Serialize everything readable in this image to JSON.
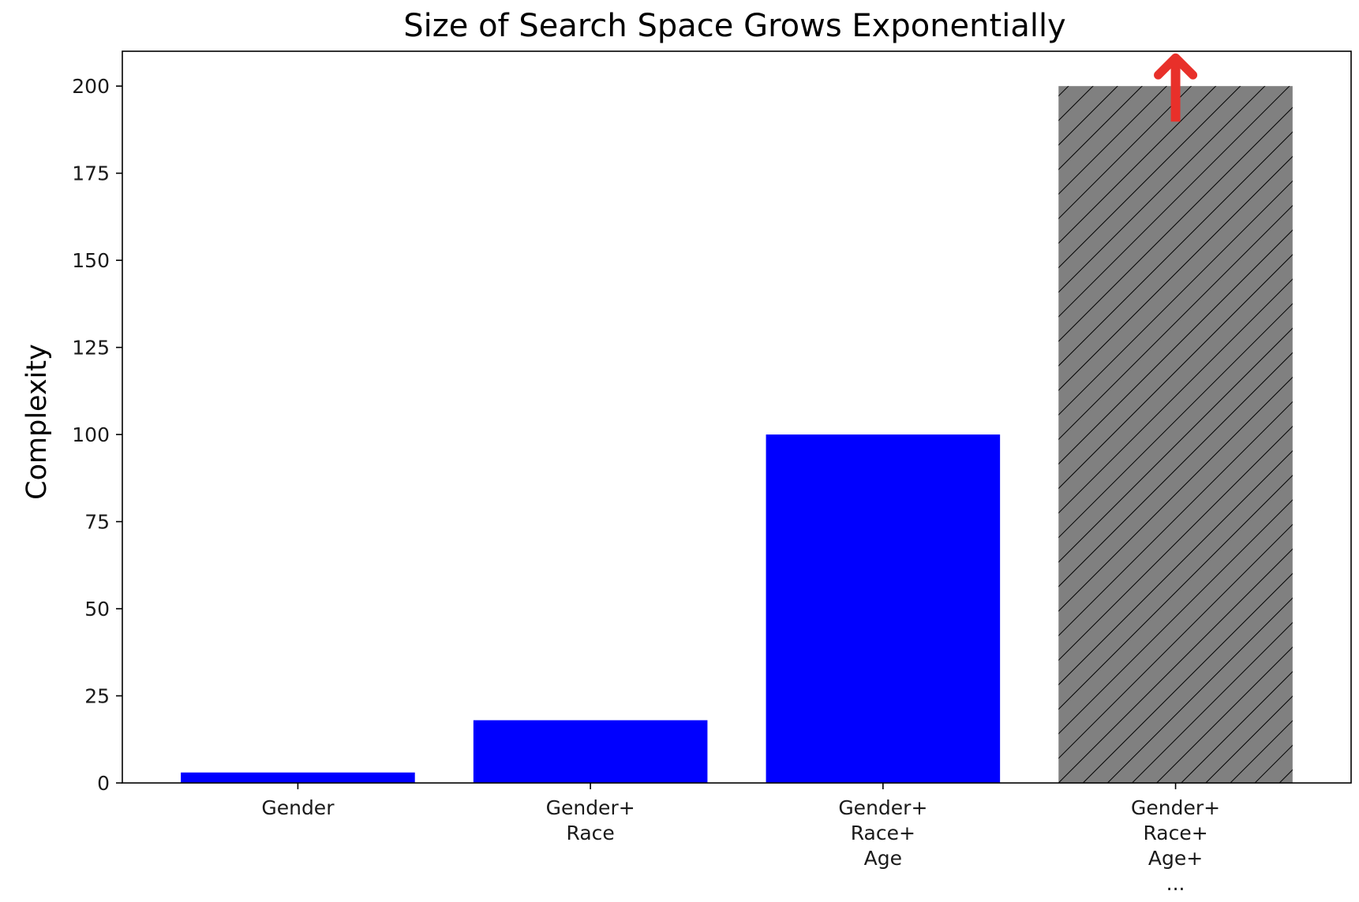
{
  "chart_data": {
    "type": "bar",
    "title": "Size of Search Space Grows Exponentially",
    "xlabel": "",
    "ylabel": "Complexity",
    "categories": [
      [
        "Gender"
      ],
      [
        "Gender+",
        "Race"
      ],
      [
        "Gender+",
        "Race+",
        "Age"
      ],
      [
        "Gender+",
        "Race+",
        "Age+",
        "..."
      ]
    ],
    "values": [
      3,
      18,
      100,
      200
    ],
    "bar_colors": [
      "#0000ff",
      "#0000ff",
      "#0000ff",
      "#808080"
    ],
    "hatched": [
      false,
      false,
      false,
      true
    ],
    "hatch_color": "#000000",
    "ylim": [
      0,
      210
    ],
    "yticks": [
      0,
      25,
      50,
      75,
      100,
      125,
      150,
      175,
      200
    ],
    "grid": false,
    "legend": "none",
    "annotation": {
      "type": "arrow-up",
      "category_index": 3,
      "color": "#e8302a"
    }
  }
}
